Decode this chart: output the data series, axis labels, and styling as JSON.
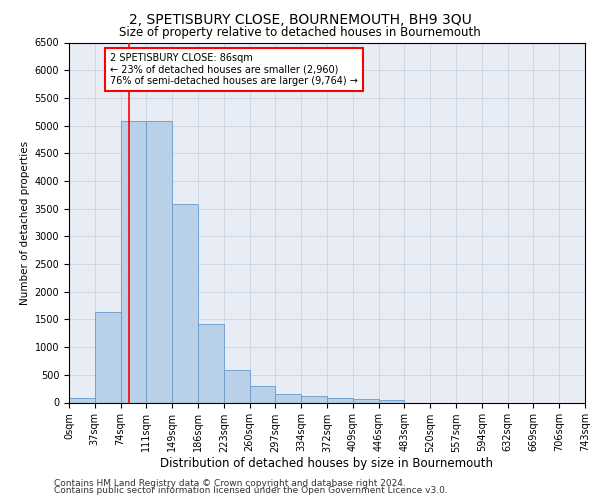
{
  "title": "2, SPETISBURY CLOSE, BOURNEMOUTH, BH9 3QU",
  "subtitle": "Size of property relative to detached houses in Bournemouth",
  "xlabel": "Distribution of detached houses by size in Bournemouth",
  "ylabel": "Number of detached properties",
  "footer_line1": "Contains HM Land Registry data © Crown copyright and database right 2024.",
  "footer_line2": "Contains public sector information licensed under the Open Government Licence v3.0.",
  "bin_labels": [
    "0sqm",
    "37sqm",
    "74sqm",
    "111sqm",
    "149sqm",
    "186sqm",
    "223sqm",
    "260sqm",
    "297sqm",
    "334sqm",
    "372sqm",
    "409sqm",
    "446sqm",
    "483sqm",
    "520sqm",
    "557sqm",
    "594sqm",
    "632sqm",
    "669sqm",
    "706sqm",
    "743sqm"
  ],
  "bar_values": [
    75,
    1630,
    5080,
    5080,
    3580,
    1410,
    590,
    290,
    145,
    110,
    75,
    55,
    40,
    0,
    0,
    0,
    0,
    0,
    0,
    0
  ],
  "bar_color": "#b8d0e8",
  "bar_edge_color": "#6699cc",
  "grid_color": "#c8d0de",
  "background_color": "#e8edf5",
  "vline_color": "red",
  "annotation_text": "2 SPETISBURY CLOSE: 86sqm\n← 23% of detached houses are smaller (2,960)\n76% of semi-detached houses are larger (9,764) →",
  "ylim": [
    0,
    6500
  ],
  "yticks": [
    0,
    500,
    1000,
    1500,
    2000,
    2500,
    3000,
    3500,
    4000,
    4500,
    5000,
    5500,
    6000,
    6500
  ],
  "title_fontsize": 10,
  "subtitle_fontsize": 8.5,
  "xlabel_fontsize": 8.5,
  "ylabel_fontsize": 7.5,
  "tick_fontsize": 7,
  "annotation_fontsize": 7,
  "footer_fontsize": 6.5
}
